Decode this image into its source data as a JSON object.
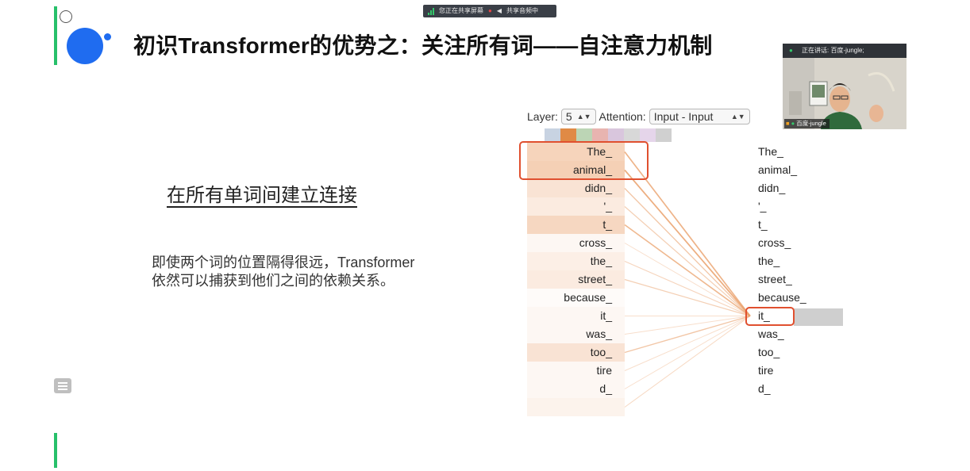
{
  "share_bar": {
    "sharing_text": "您正在共享屏幕",
    "audio_text": "共享音频中",
    "signal_color": "#33c96b"
  },
  "slide": {
    "title": "初识Transformer的优势之：关注所有词——自注意力机制",
    "subtitle": "在所有单词间建立连接",
    "description_line1": "即使两个词的位置隔得很远，Transformer",
    "description_line2": "依然可以捕获到他们之间的依赖关系。",
    "accent_green": "#27c06a",
    "accent_blue": "#1f6cf0",
    "highlight_color": "#e0502f"
  },
  "attention_widget": {
    "layer_label": "Layer:",
    "layer_value": "5",
    "attention_label": "Attention:",
    "attention_value": "Input - Input",
    "head_colors": [
      "#c8d3e2",
      "#e08a45",
      "#bcd5b5",
      "#e8b4b0",
      "#d9c6dd",
      "#d8d8d8",
      "#e5d5ea",
      "#d0d0d0"
    ],
    "left_tokens": [
      "The_",
      "animal_",
      "didn_",
      "'_",
      "t_",
      "cross_",
      "the_",
      "street_",
      "because_",
      "it_",
      "was_",
      "too_",
      "tire",
      "d_",
      ""
    ],
    "left_token_weights": [
      0.55,
      0.6,
      0.35,
      0.25,
      0.5,
      0.1,
      0.2,
      0.25,
      0.05,
      0.1,
      0.1,
      0.35,
      0.1,
      0.1,
      0.15
    ],
    "right_tokens": [
      "The_",
      "animal_",
      "didn_",
      "'_",
      "t_",
      "cross_",
      "the_",
      "street_",
      "because_",
      "it_",
      "was_",
      "too_",
      "tire",
      "d_"
    ],
    "focus_token_index": 9
  },
  "webcam": {
    "speaking_label": "正在讲话:",
    "speaker_name": "百度-jungle;",
    "name_tag": "百度-jungle"
  }
}
